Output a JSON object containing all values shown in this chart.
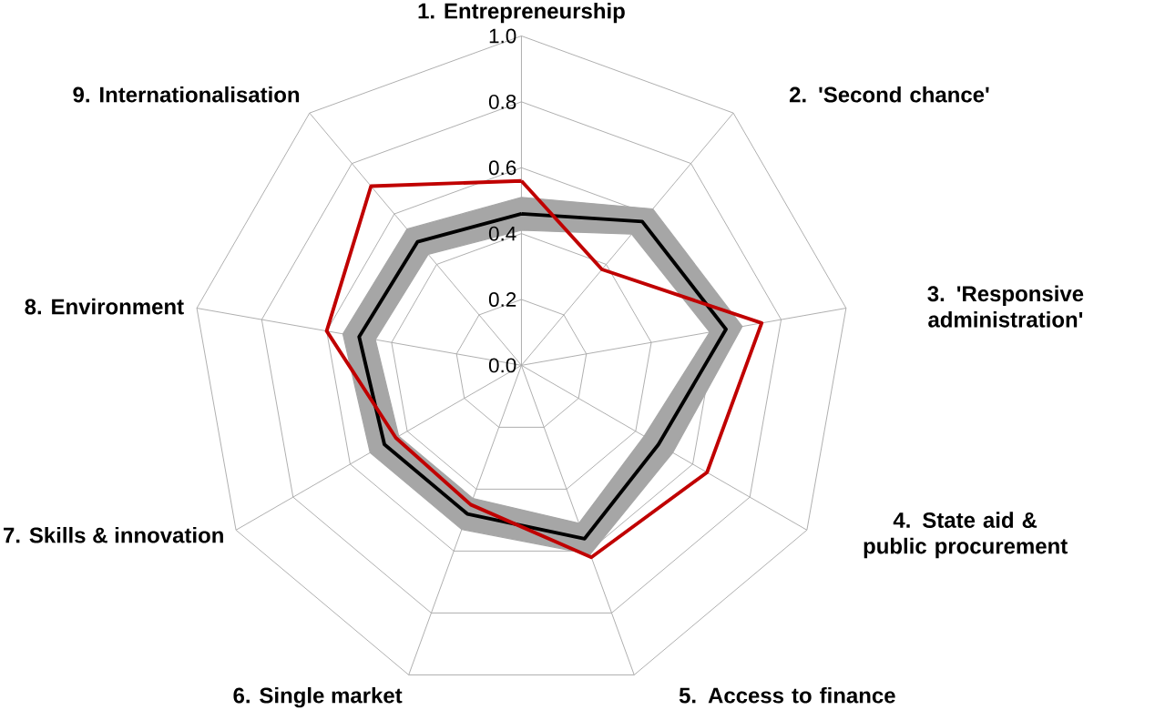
{
  "chart_data": {
    "type": "radar",
    "categories": [
      "1. Entrepreneurship",
      "2. 'Second chance'",
      "3. 'Responsive administration'",
      "4. State aid & public procurement",
      "5. Access to finance",
      "6. Single market",
      "7. Skills & innovation",
      "8. Environment",
      "9. Internationalisation"
    ],
    "series": [
      {
        "color": "#a6a6a6",
        "values": [
          0.51,
          0.62,
          0.68,
          0.53,
          0.61,
          0.53,
          0.53,
          0.55,
          0.54
        ]
      },
      {
        "color": "#a6a6a6",
        "values": [
          0.41,
          0.52,
          0.58,
          0.43,
          0.51,
          0.43,
          0.43,
          0.45,
          0.44
        ]
      },
      {
        "color": "#000000",
        "values": [
          0.46,
          0.57,
          0.63,
          0.48,
          0.56,
          0.48,
          0.48,
          0.5,
          0.49
        ]
      },
      {
        "color": "#c00000",
        "values": [
          0.56,
          0.38,
          0.74,
          0.65,
          0.62,
          0.45,
          0.44,
          0.6,
          0.71
        ]
      }
    ],
    "ylim": [
      0,
      1
    ],
    "yticks": [
      {
        "value": 0,
        "label": "0.0"
      },
      {
        "value": 0.2,
        "label": "0.2"
      },
      {
        "value": 0.4,
        "label": "0.4"
      },
      {
        "value": 0.6,
        "label": "0.6"
      },
      {
        "value": 0.8,
        "label": "0.8"
      },
      {
        "value": 1,
        "label": "1.0"
      }
    ],
    "grid": true
  }
}
